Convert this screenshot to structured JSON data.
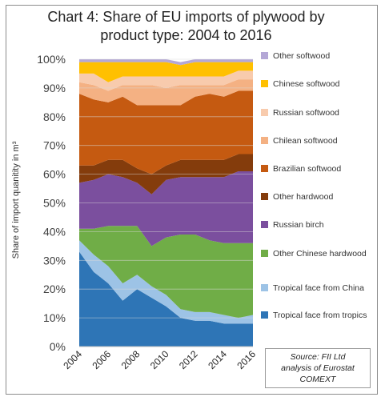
{
  "chart_data": {
    "type": "area",
    "stacked": true,
    "title": "Chart 4: Share of EU imports of plywood by\nproduct type: 2004 to 2016",
    "ylabel": "Share of import quanitity in m³",
    "xlabel": "",
    "x": [
      2004,
      2005,
      2006,
      2007,
      2008,
      2009,
      2010,
      2011,
      2012,
      2013,
      2014,
      2015,
      2016
    ],
    "x_ticks": [
      "2004",
      "2006",
      "2008",
      "2010",
      "2012",
      "2014",
      "2016"
    ],
    "ylim": [
      0,
      100
    ],
    "y_ticks": [
      "0%",
      "10%",
      "20%",
      "30%",
      "40%",
      "50%",
      "60%",
      "70%",
      "80%",
      "90%",
      "100%"
    ],
    "grid": true,
    "legend_position": "right",
    "series": [
      {
        "name": "Tropical face from tropics",
        "color": "#2e75b6",
        "values": [
          33,
          26,
          22,
          16,
          20,
          17,
          14,
          10,
          9,
          9,
          8,
          8,
          8
        ]
      },
      {
        "name": "Tropical face from China",
        "color": "#9dc3e6",
        "values": [
          4,
          6,
          6,
          6,
          5,
          4,
          4,
          3,
          3,
          3,
          3,
          2,
          3
        ]
      },
      {
        "name": "Other Chinese hardwood",
        "color": "#70ad47",
        "values": [
          4,
          9,
          14,
          20,
          17,
          14,
          20,
          26,
          27,
          25,
          25,
          26,
          25
        ]
      },
      {
        "name": "Russian birch",
        "color": "#7b4f9e",
        "values": [
          16,
          17,
          18,
          17,
          15,
          18,
          20,
          20,
          20,
          22,
          23,
          25,
          25
        ]
      },
      {
        "name": "Other hardwood",
        "color": "#843c0c",
        "values": [
          6,
          5,
          5,
          6,
          5,
          7,
          5,
          6,
          6,
          6,
          6,
          6,
          6
        ]
      },
      {
        "name": "Brazilian softwood",
        "color": "#c55a11",
        "values": [
          25,
          23,
          20,
          22,
          22,
          24,
          21,
          19,
          22,
          23,
          22,
          22,
          22
        ]
      },
      {
        "name": "Chilean softwood",
        "color": "#f4b183",
        "values": [
          4,
          5,
          4,
          4,
          7,
          7,
          6,
          7,
          4,
          3,
          4,
          4,
          4
        ]
      },
      {
        "name": "Russian softwood",
        "color": "#f8cbad",
        "values": [
          3,
          4,
          3,
          3,
          3,
          3,
          4,
          3,
          3,
          3,
          3,
          3,
          3
        ]
      },
      {
        "name": "Chinese softwood",
        "color": "#ffc000",
        "values": [
          4,
          4,
          7,
          5,
          5,
          5,
          5,
          4,
          5,
          5,
          5,
          3,
          3
        ]
      },
      {
        "name": "Other softwood",
        "color": "#b4a7d6",
        "values": [
          1,
          1,
          1,
          1,
          1,
          1,
          1,
          1,
          1,
          1,
          1,
          1,
          1
        ]
      }
    ],
    "source": "Source: FII Ltd\nanalysis of Eurostat\nCOMEXT"
  }
}
